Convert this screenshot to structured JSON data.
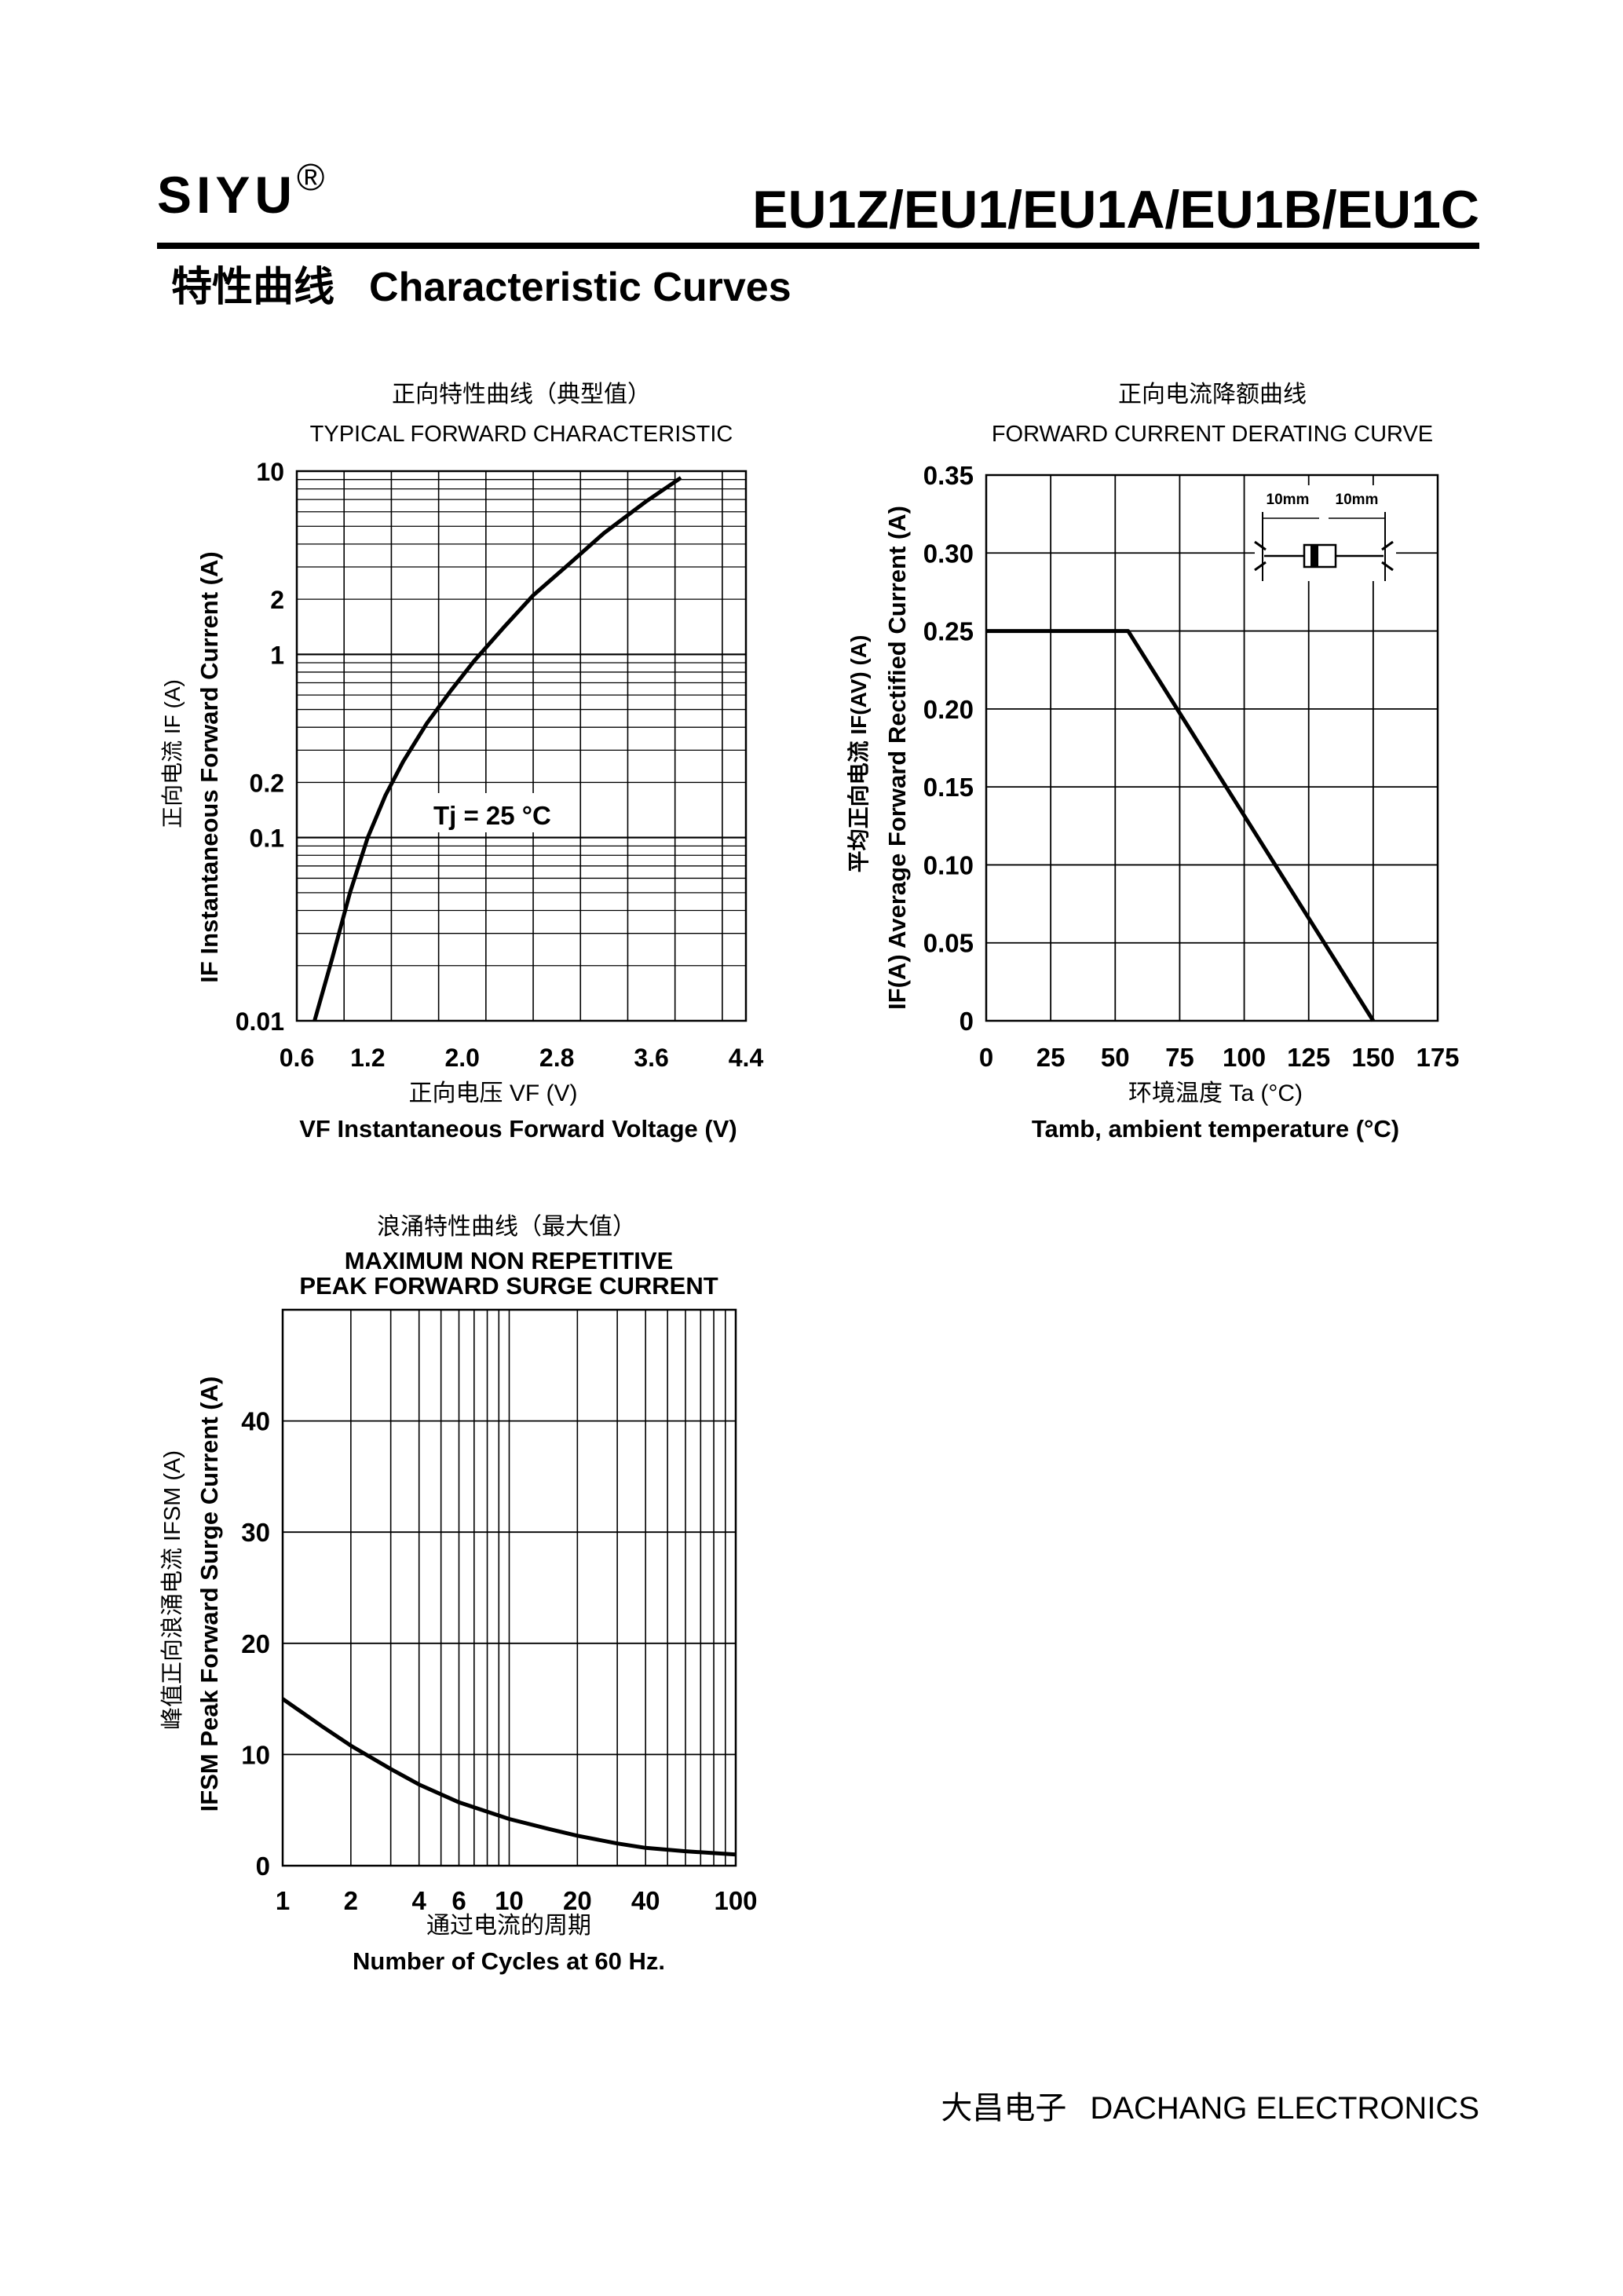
{
  "header": {
    "brand": "SIYU",
    "registered_mark": "®",
    "part_numbers": "EU1Z/EU1/EU1A/EU1B/EU1C",
    "section_title_cn": "特性曲线",
    "section_title_en": "Characteristic Curves"
  },
  "footer": {
    "company_cn": "大昌电子",
    "company_en": "DACHANG ELECTRONICS"
  },
  "chart_data": [
    {
      "type": "line",
      "title_cn": "正向特性曲线（典型值）",
      "title": "TYPICAL FORWARD CHARACTERISTIC",
      "xlabel_cn": "正向电压",
      "xlabel_sym": "VF (V)",
      "xlabel": "VF  Instantaneous Forward Voltage (V)",
      "ylabel_cn": "正向电流",
      "ylabel_sym": "IF (A)",
      "ylabel": "IF Instantaneous Forward Current (A)",
      "xscale": "linear",
      "yscale": "log",
      "xlim": [
        0.6,
        4.4
      ],
      "ylim": [
        0.01,
        10
      ],
      "x_ticks": [
        0.6,
        1.2,
        2.0,
        2.8,
        3.6,
        4.4
      ],
      "x_tick_labels": [
        "0.6",
        "1.2",
        "2.0",
        "2.8",
        "3.6",
        "4.4"
      ],
      "y_ticks": [
        10,
        2,
        1,
        0.2,
        0.1,
        0.01
      ],
      "y_tick_labels": [
        "10",
        "2",
        "1",
        "0.2",
        "0.1",
        "0.01"
      ],
      "annotation": "Tj = 25 °C",
      "grid": true,
      "series": [
        {
          "name": "Tj = 25 °C",
          "x": [
            0.75,
            0.9,
            1.05,
            1.2,
            1.35,
            1.5,
            1.7,
            1.9,
            2.1,
            2.35,
            2.6,
            2.9,
            3.2,
            3.55,
            3.85
          ],
          "y": [
            0.01,
            0.022,
            0.05,
            0.1,
            0.17,
            0.26,
            0.42,
            0.63,
            0.92,
            1.4,
            2.1,
            3.1,
            4.6,
            6.8,
            9.2
          ]
        }
      ]
    },
    {
      "type": "line",
      "title_cn": "正向电流降额曲线",
      "title": "FORWARD CURRENT DERATING CURVE",
      "xlabel_cn": "环境温度",
      "xlabel_sym": "Ta (°C)",
      "xlabel": "Tamb, ambient temperature (°C)",
      "ylabel_cn": "平均正向电流",
      "ylabel_sym": "IF(AV) (A)",
      "ylabel": "IF(A) Average Forward Rectified Current (A)",
      "xlim": [
        0,
        175
      ],
      "ylim": [
        0,
        0.35
      ],
      "x_ticks": [
        0,
        25,
        50,
        75,
        100,
        125,
        150,
        175
      ],
      "x_tick_labels": [
        "0",
        "25",
        "50",
        "75",
        "100",
        "125",
        "150",
        "175"
      ],
      "y_ticks": [
        0,
        0.05,
        0.1,
        0.15,
        0.2,
        0.25,
        0.3,
        0.35
      ],
      "y_tick_labels": [
        "0",
        "0.05",
        "0.10",
        "0.15",
        "0.20",
        "0.25",
        "0.30",
        "0.35"
      ],
      "inset_labels": [
        "10mm",
        "10mm"
      ],
      "grid": true,
      "series": [
        {
          "name": "derating",
          "x": [
            0,
            55,
            150
          ],
          "y": [
            0.25,
            0.25,
            0
          ]
        }
      ]
    },
    {
      "type": "line",
      "title_cn": "浪涌特性曲线（最大值）",
      "title": "MAXIMUM NON REPETITIVE",
      "title2": "PEAK FORWARD SURGE CURRENT",
      "xlabel_cn": "通过电流的周期",
      "xlabel": "Number  of  Cycles at 60 Hz.",
      "ylabel_cn": "峰值正向浪涌电流",
      "ylabel_sym": "IFSM (A)",
      "ylabel": "IFSM Peak Forward Surge Current (A)",
      "xscale": "log",
      "xlim": [
        1,
        100
      ],
      "ylim": [
        0,
        50
      ],
      "x_ticks": [
        1,
        2,
        4,
        6,
        10,
        20,
        40,
        100
      ],
      "x_tick_labels": [
        "1",
        "2",
        "4",
        "6",
        "10",
        "20",
        "40",
        "100"
      ],
      "y_ticks": [
        0,
        10,
        20,
        30,
        40
      ],
      "y_tick_labels": [
        "0",
        "10",
        "20",
        "30",
        "40"
      ],
      "grid": true,
      "series": [
        {
          "name": "IFSM",
          "x": [
            1,
            1.5,
            2,
            3,
            4,
            6,
            10,
            15,
            20,
            30,
            40,
            60,
            100
          ],
          "y": [
            15,
            12.5,
            10.8,
            8.7,
            7.3,
            5.7,
            4.2,
            3.3,
            2.7,
            2.0,
            1.6,
            1.3,
            1.0
          ]
        }
      ]
    }
  ]
}
